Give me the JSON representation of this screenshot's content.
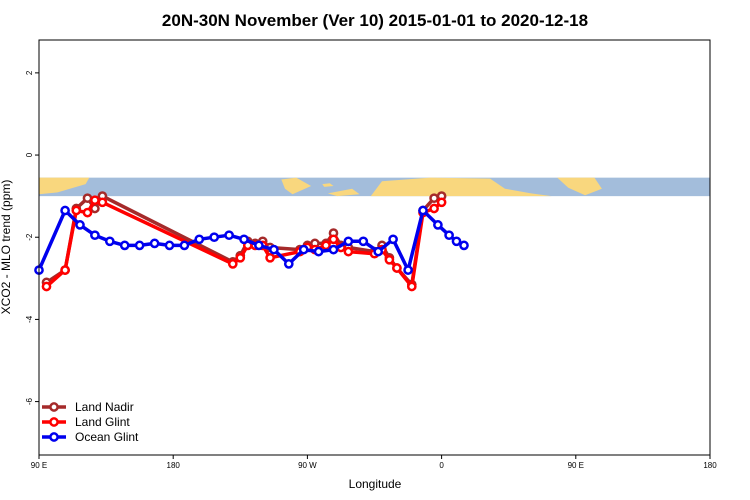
{
  "chart_data": {
    "type": "line",
    "title": "20N-30N November (Ver 10)   2015-01-01 to 2020-12-18",
    "xlabel": "Longitude",
    "ylabel": "XCO2 - MLO trend (ppm)",
    "xlim": [
      -180,
      180
    ],
    "ylim": [
      -7.3,
      2.8
    ],
    "x_ticks": [
      {
        "value": -180,
        "label": "90 E"
      },
      {
        "value": -108,
        "label": "180"
      },
      {
        "value": -36,
        "label": "90 W"
      },
      {
        "value": 36,
        "label": "0"
      },
      {
        "value": 108,
        "label": "90 E"
      },
      {
        "value": 180,
        "label": "180"
      }
    ],
    "y_ticks": [
      {
        "value": 2,
        "label": "2"
      },
      {
        "value": 0,
        "label": "0"
      },
      {
        "value": -2,
        "label": "-2"
      },
      {
        "value": -4,
        "label": "-4"
      },
      {
        "value": -6,
        "label": "-6"
      }
    ],
    "map_band": {
      "ymin": -1.0,
      "ymax": -0.55,
      "ocean_color": "#a3bddb",
      "land_color": "#f9d77e"
    },
    "legend_position": "bottom-left",
    "series": [
      {
        "name": "Land Nadir",
        "color": "#a52a2a",
        "x": [
          -176,
          -166,
          -160,
          -154,
          -150,
          -146,
          -76,
          -72,
          -68,
          -64,
          -60,
          -56,
          -40,
          -36,
          -32,
          -26,
          -22,
          -18,
          -14,
          0,
          4,
          8,
          12,
          20,
          26,
          32,
          36
        ],
        "y": [
          -3.1,
          -2.8,
          -1.3,
          -1.05,
          -1.3,
          -1.0,
          -2.6,
          -2.45,
          -2.1,
          -2.15,
          -2.1,
          -2.25,
          -2.3,
          -2.2,
          -2.15,
          -2.15,
          -1.9,
          -2.2,
          -2.25,
          -2.35,
          -2.2,
          -2.5,
          -2.75,
          -3.15,
          -1.35,
          -1.05,
          -1.0
        ]
      },
      {
        "name": "Land Glint",
        "color": "#ff0000",
        "x": [
          -176,
          -166,
          -160,
          -154,
          -150,
          -146,
          -76,
          -72,
          -68,
          -64,
          -60,
          -56,
          -40,
          -36,
          -32,
          -26,
          -22,
          -18,
          -14,
          0,
          4,
          8,
          12,
          20,
          26,
          32,
          36
        ],
        "y": [
          -3.2,
          -2.8,
          -1.35,
          -1.4,
          -1.1,
          -1.15,
          -2.65,
          -2.5,
          -2.2,
          -2.2,
          -2.2,
          -2.5,
          -2.35,
          -2.25,
          -2.3,
          -2.2,
          -2.05,
          -2.25,
          -2.35,
          -2.4,
          -2.3,
          -2.55,
          -2.75,
          -3.2,
          -1.4,
          -1.3,
          -1.15
        ]
      },
      {
        "name": "Ocean Glint",
        "color": "#0000ee",
        "x": [
          -180,
          -166,
          -158,
          -150,
          -142,
          -134,
          -126,
          -118,
          -110,
          -102,
          -94,
          -86,
          -78,
          -70,
          -62,
          -54,
          -46,
          -38,
          -30,
          -22,
          -14,
          -6,
          2,
          10,
          18,
          26,
          34,
          40,
          44,
          48
        ],
        "y": [
          -2.8,
          -1.35,
          -1.7,
          -1.95,
          -2.1,
          -2.2,
          -2.2,
          -2.15,
          -2.2,
          -2.2,
          -2.05,
          -2.0,
          -1.95,
          -2.05,
          -2.2,
          -2.3,
          -2.65,
          -2.3,
          -2.35,
          -2.3,
          -2.1,
          -2.1,
          -2.35,
          -2.05,
          -2.8,
          -1.35,
          -1.7,
          -1.95,
          -2.1,
          -2.2
        ]
      }
    ]
  }
}
